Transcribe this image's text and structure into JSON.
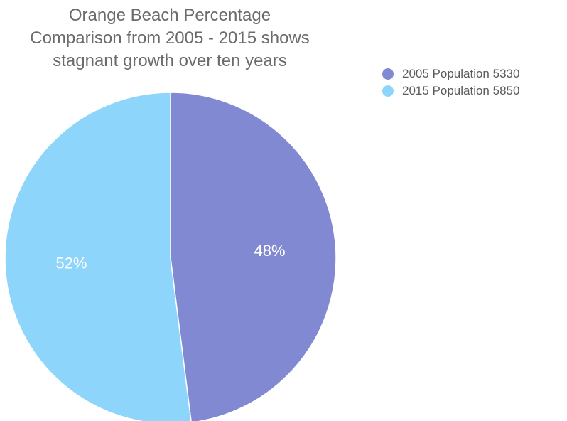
{
  "chart_data": {
    "type": "pie",
    "title_lines": [
      "Orange Beach Percentage",
      "Comparison from 2005 - 2015 shows",
      "stagnant growth over ten years"
    ],
    "slices": [
      {
        "label": "2005 Population 5330",
        "percent": 48,
        "value_label": "48%",
        "color": "#8189d2"
      },
      {
        "label": "2015 Population 5850",
        "percent": 52,
        "value_label": "52%",
        "color": "#8dd5fa"
      }
    ],
    "legend_position": "top-right"
  }
}
